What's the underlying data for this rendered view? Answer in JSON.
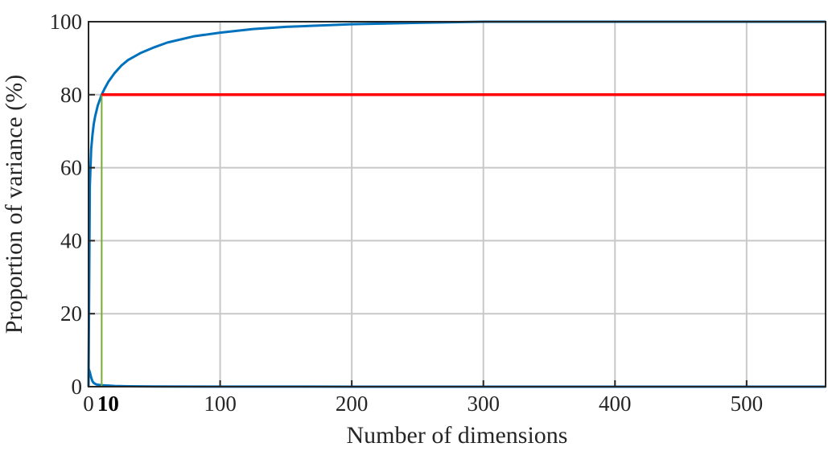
{
  "chart_data": {
    "type": "line",
    "title": "",
    "xlabel": "Number of dimensions",
    "ylabel": "Proportion of variance (%)",
    "xlim": [
      0,
      560
    ],
    "ylim": [
      0,
      100
    ],
    "x_ticks": [
      0,
      100,
      200,
      300,
      400,
      500
    ],
    "x_tick_labels": [
      "0",
      "100",
      "200",
      "300",
      "400",
      "500"
    ],
    "highlight_tick": {
      "value": 10,
      "label": "10"
    },
    "y_ticks": [
      0,
      20,
      40,
      60,
      80,
      100
    ],
    "y_tick_labels": [
      "0",
      "20",
      "40",
      "60",
      "80",
      "100"
    ],
    "grid": true,
    "series": [
      {
        "color": "#0072bd",
        "x": [
          0,
          1,
          2,
          3,
          4,
          5,
          6,
          7,
          8,
          10,
          12,
          15,
          20,
          25,
          30,
          40,
          50,
          60,
          80,
          100,
          125,
          150,
          200,
          250,
          300,
          350,
          400,
          450,
          500,
          560
        ],
        "y": [
          0,
          55,
          65,
          69,
          72,
          74,
          75.5,
          77,
          78,
          80,
          81.5,
          83.5,
          86,
          88,
          89.5,
          91.5,
          93,
          94.3,
          96,
          97,
          98,
          98.6,
          99.3,
          99.7,
          100,
          100,
          100,
          100,
          100,
          100
        ]
      },
      {
        "color": "#0072bd",
        "x": [
          0,
          1,
          2,
          3,
          4,
          5,
          6,
          8,
          10,
          15,
          20,
          30,
          50,
          100,
          200,
          560
        ],
        "y": [
          5,
          4,
          2.5,
          1.5,
          1,
          0.8,
          0.6,
          0.5,
          0.4,
          0.3,
          0.2,
          0.1,
          0.05,
          0.02,
          0.01,
          0
        ]
      },
      {
        "color": "#77ac30",
        "x": [
          10,
          10
        ],
        "y": [
          0,
          80
        ]
      },
      {
        "color": "#ff0000",
        "x": [
          10,
          560
        ],
        "y": [
          80,
          80
        ]
      }
    ]
  }
}
